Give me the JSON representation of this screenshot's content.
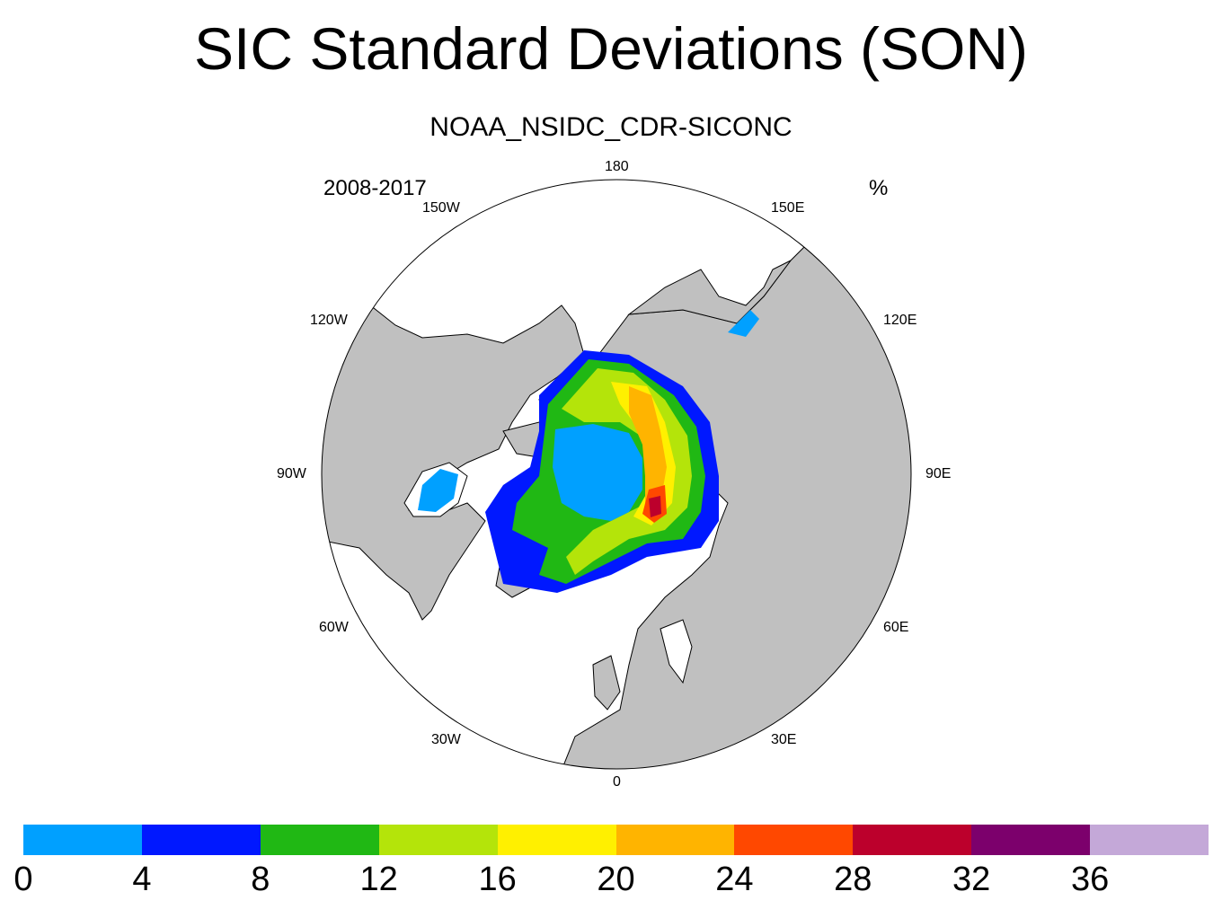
{
  "title": "SIC Standard Deviations (SON)",
  "subtitle": "NOAA_NSIDC_CDR-SICONC",
  "period_label": "2008-2017",
  "units_label": "%",
  "map": {
    "projection": "north polar stereographic",
    "land_color": "#c0c0c0",
    "ocean_color": "#ffffff",
    "longitude_labels": [
      "180",
      "150E",
      "120E",
      "90E",
      "60E",
      "30E",
      "0",
      "30W",
      "60W",
      "90W",
      "120W",
      "150W"
    ]
  },
  "colorbar": {
    "colors": [
      "#00a0ff",
      "#0018ff",
      "#20b814",
      "#b4e40a",
      "#fff000",
      "#ffb400",
      "#ff4800",
      "#bc002c",
      "#7c006c",
      "#c4a8d8"
    ],
    "labels": [
      "0",
      "4",
      "8",
      "12",
      "16",
      "20",
      "24",
      "28",
      "32",
      "36"
    ]
  }
}
